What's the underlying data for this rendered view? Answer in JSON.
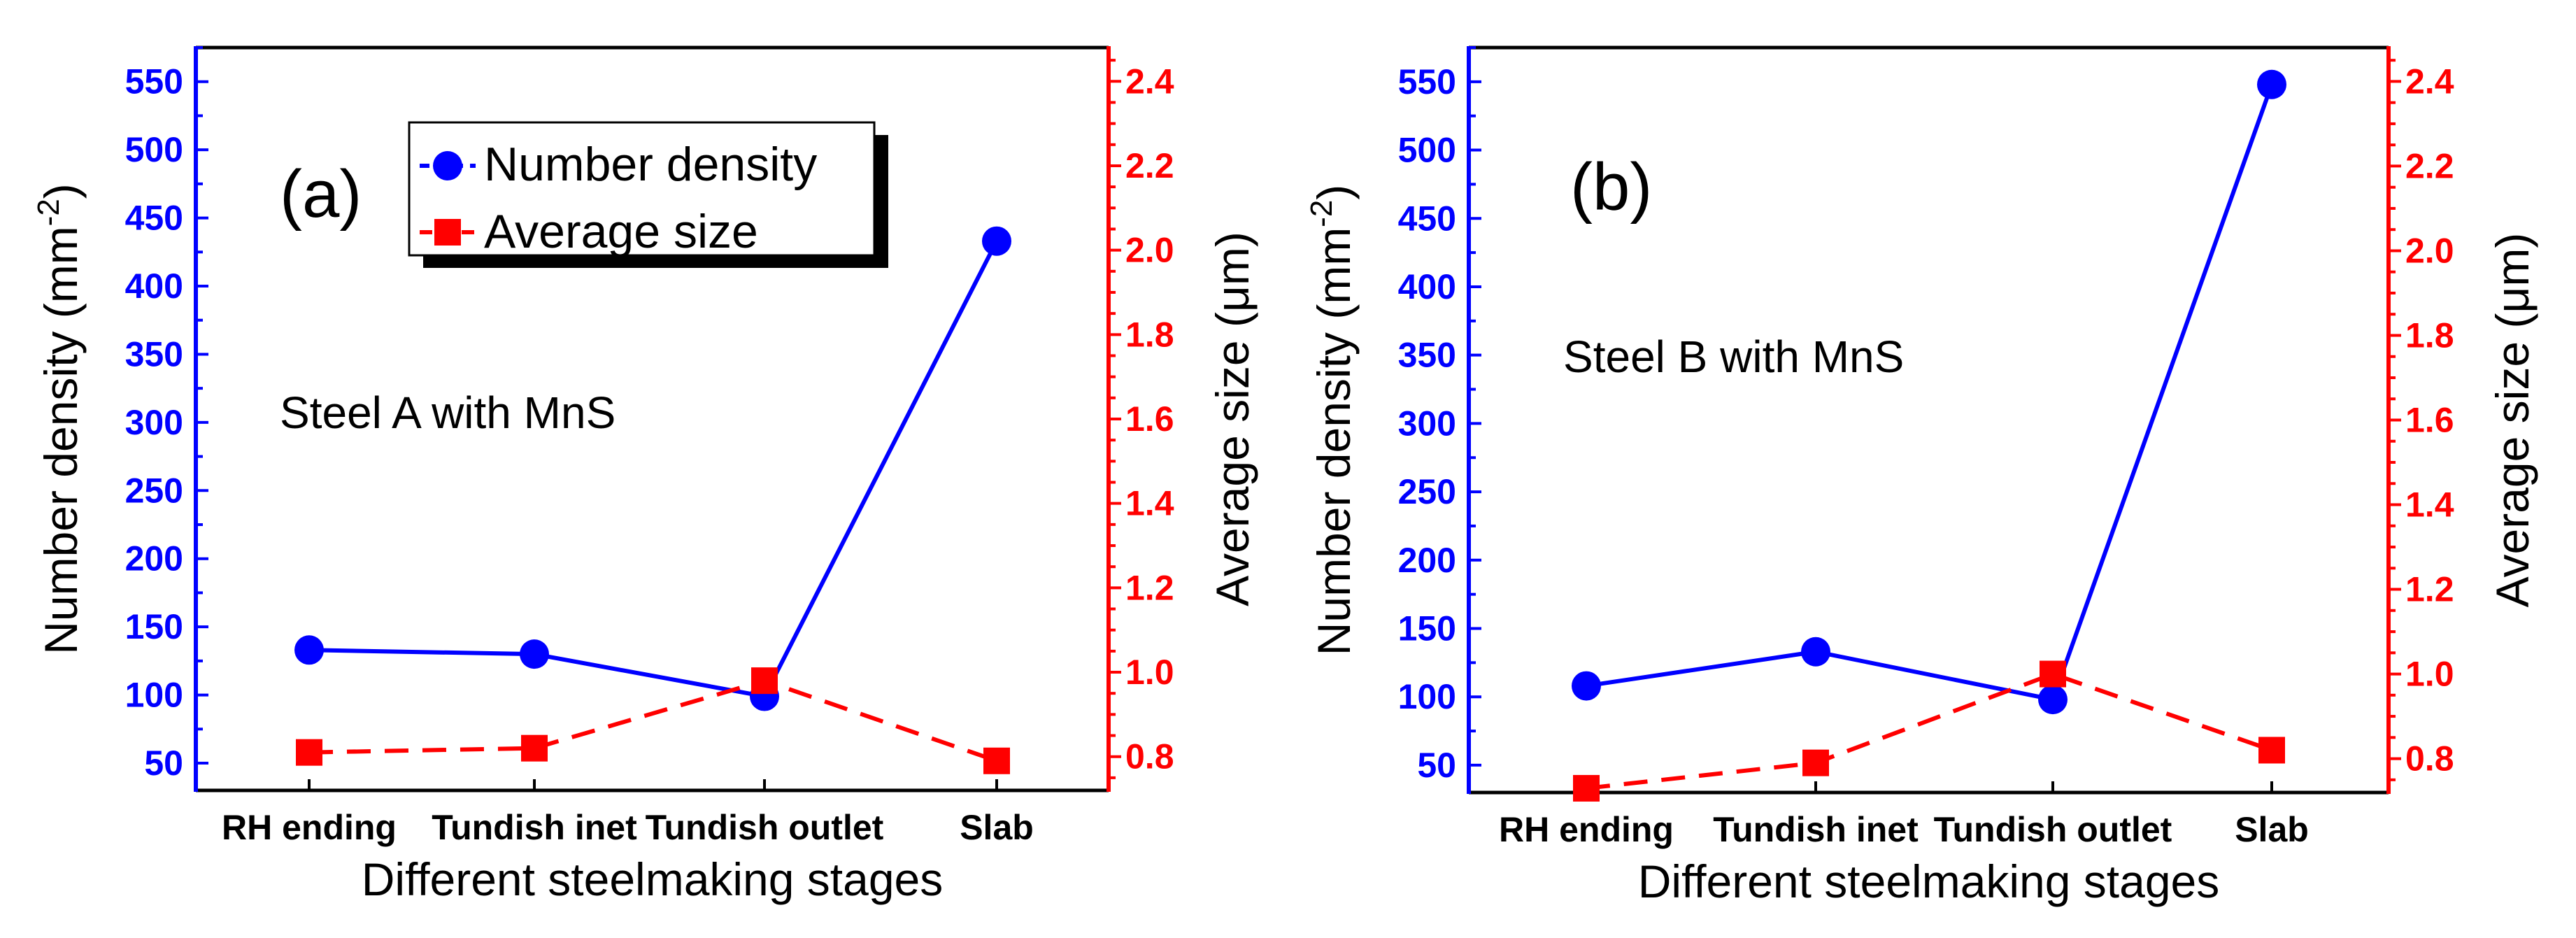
{
  "chart_data": [
    {
      "type": "line",
      "panel_label": "(a)",
      "annotation": "Steel A with MnS",
      "categories": [
        "RH ending",
        "Tundish inet",
        "Tundish outlet",
        "Slab"
      ],
      "xlabel": "Different steelmaking stages",
      "ylabel_left": "Number density (mm",
      "ylabel_left_sup": "-2",
      "ylabel_left_close": ")",
      "ylabel_right": "Average size (μm)",
      "ylim_left": [
        30,
        575
      ],
      "yticks_left": [
        50,
        100,
        150,
        200,
        250,
        300,
        350,
        400,
        450,
        500,
        550
      ],
      "ylim_right": [
        0.72,
        2.48
      ],
      "yticks_right": [
        0.8,
        1.0,
        1.2,
        1.4,
        1.6,
        1.8,
        2.0,
        2.2,
        2.4
      ],
      "series": [
        {
          "name": "Number density",
          "axis": "left",
          "color": "#0000ff",
          "style": "solid",
          "marker": "circle",
          "values": [
            133,
            130,
            99,
            433
          ]
        },
        {
          "name": "Average size",
          "axis": "right",
          "color": "#ff0000",
          "style": "dashed",
          "marker": "square",
          "values": [
            0.81,
            0.82,
            0.98,
            0.79
          ]
        }
      ],
      "legend": {
        "position": "top-center",
        "entries": [
          "Number density",
          "Average size"
        ]
      }
    },
    {
      "type": "line",
      "panel_label": "(b)",
      "annotation": "Steel B with MnS",
      "categories": [
        "RH ending",
        "Tundish inet",
        "Tundish outlet",
        "Slab"
      ],
      "xlabel": "Different steelmaking stages",
      "ylabel_left": "Number density (mm",
      "ylabel_left_sup": "-2",
      "ylabel_left_close": ")",
      "ylabel_right": "Average size (μm)",
      "ylim_left": [
        30,
        575
      ],
      "yticks_left": [
        50,
        100,
        150,
        200,
        250,
        300,
        350,
        400,
        450,
        500,
        550
      ],
      "ylim_right": [
        0.72,
        2.48
      ],
      "yticks_right": [
        0.8,
        1.0,
        1.2,
        1.4,
        1.6,
        1.8,
        2.0,
        2.2,
        2.4
      ],
      "series": [
        {
          "name": "Number density",
          "axis": "left",
          "color": "#0000ff",
          "style": "solid",
          "marker": "circle",
          "values": [
            108,
            133,
            98,
            548
          ]
        },
        {
          "name": "Average size",
          "axis": "right",
          "color": "#ff0000",
          "style": "dashed",
          "marker": "square",
          "values": [
            0.73,
            0.79,
            1.0,
            0.82
          ]
        }
      ]
    }
  ]
}
